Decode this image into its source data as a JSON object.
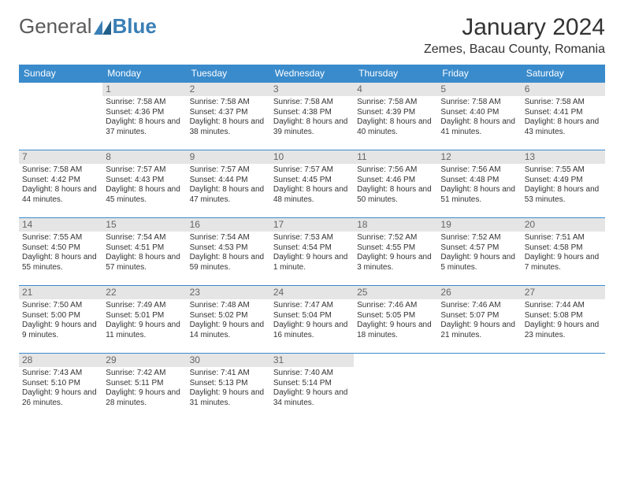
{
  "colors": {
    "header_bg": "#3a8bcc",
    "header_text": "#ffffff",
    "daynum_bg": "#e5e5e5",
    "daynum_text": "#666666",
    "body_text": "#333333",
    "rule": "#3a8bcc",
    "logo_gray": "#5a5a5a",
    "logo_blue": "#3a7fb5"
  },
  "logo": {
    "part1": "General",
    "part2": "Blue"
  },
  "title": "January 2024",
  "location": "Zemes, Bacau County, Romania",
  "weekdays": [
    "Sunday",
    "Monday",
    "Tuesday",
    "Wednesday",
    "Thursday",
    "Friday",
    "Saturday"
  ],
  "weeks": [
    [
      {
        "n": "",
        "sr": "",
        "ss": "",
        "dl": ""
      },
      {
        "n": "1",
        "sr": "Sunrise: 7:58 AM",
        "ss": "Sunset: 4:36 PM",
        "dl": "Daylight: 8 hours and 37 minutes."
      },
      {
        "n": "2",
        "sr": "Sunrise: 7:58 AM",
        "ss": "Sunset: 4:37 PM",
        "dl": "Daylight: 8 hours and 38 minutes."
      },
      {
        "n": "3",
        "sr": "Sunrise: 7:58 AM",
        "ss": "Sunset: 4:38 PM",
        "dl": "Daylight: 8 hours and 39 minutes."
      },
      {
        "n": "4",
        "sr": "Sunrise: 7:58 AM",
        "ss": "Sunset: 4:39 PM",
        "dl": "Daylight: 8 hours and 40 minutes."
      },
      {
        "n": "5",
        "sr": "Sunrise: 7:58 AM",
        "ss": "Sunset: 4:40 PM",
        "dl": "Daylight: 8 hours and 41 minutes."
      },
      {
        "n": "6",
        "sr": "Sunrise: 7:58 AM",
        "ss": "Sunset: 4:41 PM",
        "dl": "Daylight: 8 hours and 43 minutes."
      }
    ],
    [
      {
        "n": "7",
        "sr": "Sunrise: 7:58 AM",
        "ss": "Sunset: 4:42 PM",
        "dl": "Daylight: 8 hours and 44 minutes."
      },
      {
        "n": "8",
        "sr": "Sunrise: 7:57 AM",
        "ss": "Sunset: 4:43 PM",
        "dl": "Daylight: 8 hours and 45 minutes."
      },
      {
        "n": "9",
        "sr": "Sunrise: 7:57 AM",
        "ss": "Sunset: 4:44 PM",
        "dl": "Daylight: 8 hours and 47 minutes."
      },
      {
        "n": "10",
        "sr": "Sunrise: 7:57 AM",
        "ss": "Sunset: 4:45 PM",
        "dl": "Daylight: 8 hours and 48 minutes."
      },
      {
        "n": "11",
        "sr": "Sunrise: 7:56 AM",
        "ss": "Sunset: 4:46 PM",
        "dl": "Daylight: 8 hours and 50 minutes."
      },
      {
        "n": "12",
        "sr": "Sunrise: 7:56 AM",
        "ss": "Sunset: 4:48 PM",
        "dl": "Daylight: 8 hours and 51 minutes."
      },
      {
        "n": "13",
        "sr": "Sunrise: 7:55 AM",
        "ss": "Sunset: 4:49 PM",
        "dl": "Daylight: 8 hours and 53 minutes."
      }
    ],
    [
      {
        "n": "14",
        "sr": "Sunrise: 7:55 AM",
        "ss": "Sunset: 4:50 PM",
        "dl": "Daylight: 8 hours and 55 minutes."
      },
      {
        "n": "15",
        "sr": "Sunrise: 7:54 AM",
        "ss": "Sunset: 4:51 PM",
        "dl": "Daylight: 8 hours and 57 minutes."
      },
      {
        "n": "16",
        "sr": "Sunrise: 7:54 AM",
        "ss": "Sunset: 4:53 PM",
        "dl": "Daylight: 8 hours and 59 minutes."
      },
      {
        "n": "17",
        "sr": "Sunrise: 7:53 AM",
        "ss": "Sunset: 4:54 PM",
        "dl": "Daylight: 9 hours and 1 minute."
      },
      {
        "n": "18",
        "sr": "Sunrise: 7:52 AM",
        "ss": "Sunset: 4:55 PM",
        "dl": "Daylight: 9 hours and 3 minutes."
      },
      {
        "n": "19",
        "sr": "Sunrise: 7:52 AM",
        "ss": "Sunset: 4:57 PM",
        "dl": "Daylight: 9 hours and 5 minutes."
      },
      {
        "n": "20",
        "sr": "Sunrise: 7:51 AM",
        "ss": "Sunset: 4:58 PM",
        "dl": "Daylight: 9 hours and 7 minutes."
      }
    ],
    [
      {
        "n": "21",
        "sr": "Sunrise: 7:50 AM",
        "ss": "Sunset: 5:00 PM",
        "dl": "Daylight: 9 hours and 9 minutes."
      },
      {
        "n": "22",
        "sr": "Sunrise: 7:49 AM",
        "ss": "Sunset: 5:01 PM",
        "dl": "Daylight: 9 hours and 11 minutes."
      },
      {
        "n": "23",
        "sr": "Sunrise: 7:48 AM",
        "ss": "Sunset: 5:02 PM",
        "dl": "Daylight: 9 hours and 14 minutes."
      },
      {
        "n": "24",
        "sr": "Sunrise: 7:47 AM",
        "ss": "Sunset: 5:04 PM",
        "dl": "Daylight: 9 hours and 16 minutes."
      },
      {
        "n": "25",
        "sr": "Sunrise: 7:46 AM",
        "ss": "Sunset: 5:05 PM",
        "dl": "Daylight: 9 hours and 18 minutes."
      },
      {
        "n": "26",
        "sr": "Sunrise: 7:46 AM",
        "ss": "Sunset: 5:07 PM",
        "dl": "Daylight: 9 hours and 21 minutes."
      },
      {
        "n": "27",
        "sr": "Sunrise: 7:44 AM",
        "ss": "Sunset: 5:08 PM",
        "dl": "Daylight: 9 hours and 23 minutes."
      }
    ],
    [
      {
        "n": "28",
        "sr": "Sunrise: 7:43 AM",
        "ss": "Sunset: 5:10 PM",
        "dl": "Daylight: 9 hours and 26 minutes."
      },
      {
        "n": "29",
        "sr": "Sunrise: 7:42 AM",
        "ss": "Sunset: 5:11 PM",
        "dl": "Daylight: 9 hours and 28 minutes."
      },
      {
        "n": "30",
        "sr": "Sunrise: 7:41 AM",
        "ss": "Sunset: 5:13 PM",
        "dl": "Daylight: 9 hours and 31 minutes."
      },
      {
        "n": "31",
        "sr": "Sunrise: 7:40 AM",
        "ss": "Sunset: 5:14 PM",
        "dl": "Daylight: 9 hours and 34 minutes."
      },
      {
        "n": "",
        "sr": "",
        "ss": "",
        "dl": ""
      },
      {
        "n": "",
        "sr": "",
        "ss": "",
        "dl": ""
      },
      {
        "n": "",
        "sr": "",
        "ss": "",
        "dl": ""
      }
    ]
  ]
}
